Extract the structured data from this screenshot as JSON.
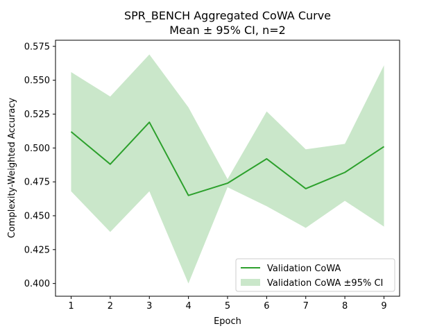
{
  "chart_data": {
    "type": "line",
    "title_line1": "SPR_BENCH Aggregated CoWA Curve",
    "title_line2": "Mean ± 95% CI, n=2",
    "xlabel": "Epoch",
    "ylabel": "Complexity-Weighted Accuracy",
    "x": [
      1,
      2,
      3,
      4,
      5,
      6,
      7,
      8,
      9
    ],
    "xlim": [
      0.6,
      9.4
    ],
    "ylim": [
      0.3906,
      0.5795
    ],
    "xticks": [
      1,
      2,
      3,
      4,
      5,
      6,
      7,
      8,
      9
    ],
    "yticks": [
      0.4,
      0.425,
      0.45,
      0.475,
      0.5,
      0.525,
      0.55,
      0.575
    ],
    "ytick_labels": [
      "0.400",
      "0.425",
      "0.450",
      "0.475",
      "0.500",
      "0.525",
      "0.550",
      "0.575"
    ],
    "series": [
      {
        "name": "Validation CoWA",
        "values": [
          0.512,
          0.488,
          0.519,
          0.465,
          0.474,
          0.492,
          0.47,
          0.482,
          0.501
        ],
        "color": "#2ca02c"
      }
    ],
    "band": {
      "name": "Validation CoWA ±95% CI",
      "upper": [
        0.556,
        0.538,
        0.569,
        0.53,
        0.477,
        0.527,
        0.499,
        0.503,
        0.561
      ],
      "lower": [
        0.468,
        0.438,
        0.468,
        0.4,
        0.471,
        0.457,
        0.441,
        0.461,
        0.442
      ],
      "color": "#2ca02c",
      "alpha": 0.25
    },
    "legend_position": "lower-right",
    "grid": false
  }
}
